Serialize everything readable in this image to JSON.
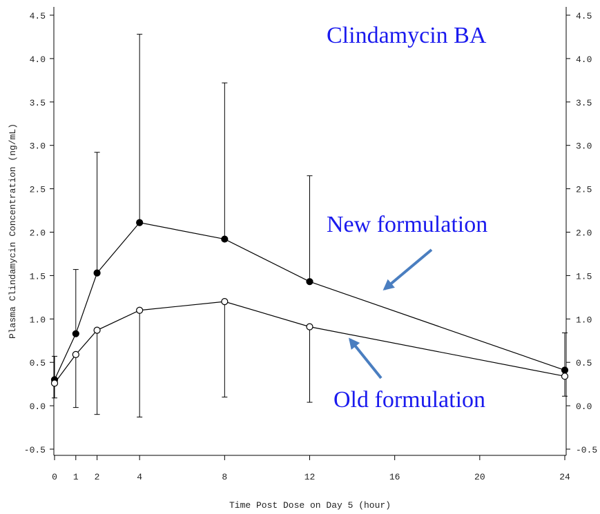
{
  "chart_data": {
    "type": "line",
    "x": [
      0,
      1,
      2,
      4,
      8,
      12,
      24
    ],
    "xlim": [
      0,
      24
    ],
    "xticks": [
      0,
      1,
      2,
      4,
      8,
      12,
      16,
      20,
      24
    ],
    "ylim": [
      -0.5,
      4.5
    ],
    "yticks": [
      -0.5,
      {
        "value": 0,
        "label": "0.0"
      },
      0.5,
      {
        "value": 1,
        "label": "1.0"
      },
      1.5,
      {
        "value": 2,
        "label": "2.0"
      },
      2.5,
      {
        "value": 3,
        "label": "3.0"
      },
      3.5,
      {
        "value": 4,
        "label": "4.0"
      },
      4.5
    ],
    "y2lim": [
      -0.5,
      4.5
    ],
    "y2ticks": [
      -0.5,
      {
        "value": 0,
        "label": "0.0"
      },
      0.5,
      {
        "value": 1,
        "label": "1.0"
      },
      1.5,
      {
        "value": 2,
        "label": "2.0"
      },
      2.5,
      {
        "value": 3,
        "label": "3.0"
      },
      3.5,
      {
        "value": 4,
        "label": "4.0"
      },
      4.5
    ],
    "xlabel": "Time Post Dose on Day 5 (hour)",
    "ylabel": "Plasma Clindamycin Concentration (ng/mL)",
    "series": [
      {
        "name": "New formulation",
        "color": "#000000",
        "marker": "filled",
        "error_direction": "up",
        "values": [
          0.3,
          0.83,
          1.53,
          2.11,
          1.92,
          1.43,
          0.41
        ],
        "errors": [
          0.27,
          0.74,
          1.39,
          2.17,
          1.8,
          1.22,
          0.43
        ]
      },
      {
        "name": "Old formulation",
        "color": "#000000",
        "marker": "open",
        "error_direction": "down",
        "values": [
          0.26,
          0.59,
          0.87,
          1.1,
          1.2,
          0.91,
          0.34
        ],
        "errors": [
          0.17,
          0.61,
          0.97,
          1.23,
          1.1,
          0.87,
          0.23
        ]
      }
    ],
    "annotations": [
      "Clindamycin BA"
    ]
  }
}
